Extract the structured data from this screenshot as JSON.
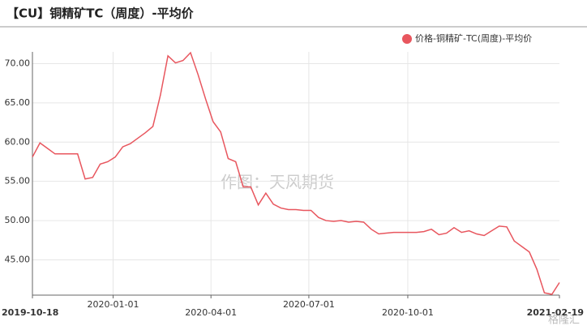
{
  "chart_data": {
    "type": "line",
    "title": "【CU】铜精矿TC（周度）-平均价",
    "watermark": "作图：天风期货",
    "logo_text": "格隆汇",
    "x": [
      "2019-10-18",
      "2019-10-25",
      "2019-11-01",
      "2019-11-08",
      "2019-11-15",
      "2019-11-22",
      "2019-11-29",
      "2019-12-06",
      "2019-12-13",
      "2019-12-20",
      "2019-12-27",
      "2020-01-03",
      "2020-01-10",
      "2020-01-17",
      "2020-01-24",
      "2020-01-31",
      "2020-02-07",
      "2020-02-14",
      "2020-02-21",
      "2020-02-28",
      "2020-03-06",
      "2020-03-13",
      "2020-03-20",
      "2020-03-27",
      "2020-04-03",
      "2020-04-10",
      "2020-04-17",
      "2020-04-24",
      "2020-05-01",
      "2020-05-08",
      "2020-05-15",
      "2020-05-22",
      "2020-05-29",
      "2020-06-05",
      "2020-06-12",
      "2020-06-19",
      "2020-06-26",
      "2020-07-03",
      "2020-07-10",
      "2020-07-17",
      "2020-07-24",
      "2020-07-31",
      "2020-08-07",
      "2020-08-14",
      "2020-08-21",
      "2020-08-28",
      "2020-09-04",
      "2020-09-11",
      "2020-09-18",
      "2020-09-25",
      "2020-10-02",
      "2020-10-09",
      "2020-10-16",
      "2020-10-23",
      "2020-10-30",
      "2020-11-06",
      "2020-11-13",
      "2020-11-20",
      "2020-11-27",
      "2020-12-04",
      "2020-12-11",
      "2020-12-18",
      "2020-12-25",
      "2021-01-01",
      "2021-01-08",
      "2021-01-15",
      "2021-01-22",
      "2021-01-29",
      "2021-02-05",
      "2021-02-12",
      "2021-02-19"
    ],
    "series": [
      {
        "name": "价格-铜精矿-TC(周度)-平均价",
        "color": "#e8565e",
        "values": [
          58.1,
          59.9,
          59.2,
          58.5,
          58.5,
          58.5,
          58.5,
          55.3,
          55.5,
          57.2,
          57.5,
          58.1,
          59.4,
          59.8,
          60.5,
          61.2,
          62.0,
          66.0,
          71.0,
          70.1,
          70.4,
          71.4,
          68.6,
          65.5,
          62.6,
          61.3,
          57.9,
          57.5,
          54.3,
          54.3,
          52.0,
          53.5,
          52.1,
          51.6,
          51.4,
          51.4,
          51.3,
          51.3,
          50.4,
          50.0,
          49.9,
          50.0,
          49.8,
          49.9,
          49.8,
          48.9,
          48.3,
          48.4,
          48.5,
          48.5,
          48.5,
          48.5,
          48.6,
          48.9,
          48.2,
          48.4,
          49.1,
          48.5,
          48.7,
          48.3,
          48.1,
          48.7,
          49.3,
          49.2,
          47.4,
          46.7,
          46.0,
          43.8,
          40.8,
          40.6,
          42.1
        ]
      }
    ],
    "xlim": [
      "2019-10-18",
      "2021-02-19"
    ],
    "xticks": [
      "2019-10-18",
      "2020-01-01",
      "2020-04-01",
      "2020-07-01",
      "2020-10-01",
      "2021-02-19"
    ],
    "ylim": [
      40.5,
      71.5
    ],
    "yticks": [
      {
        "value": 45,
        "label": "45.00"
      },
      {
        "value": 50,
        "label": "50.00"
      },
      {
        "value": 55,
        "label": "55.00"
      },
      {
        "value": 60,
        "label": "60.00"
      },
      {
        "value": 65,
        "label": "65.00"
      },
      {
        "value": 70,
        "label": "70.00"
      }
    ],
    "grid": true,
    "legend": "top-right"
  }
}
